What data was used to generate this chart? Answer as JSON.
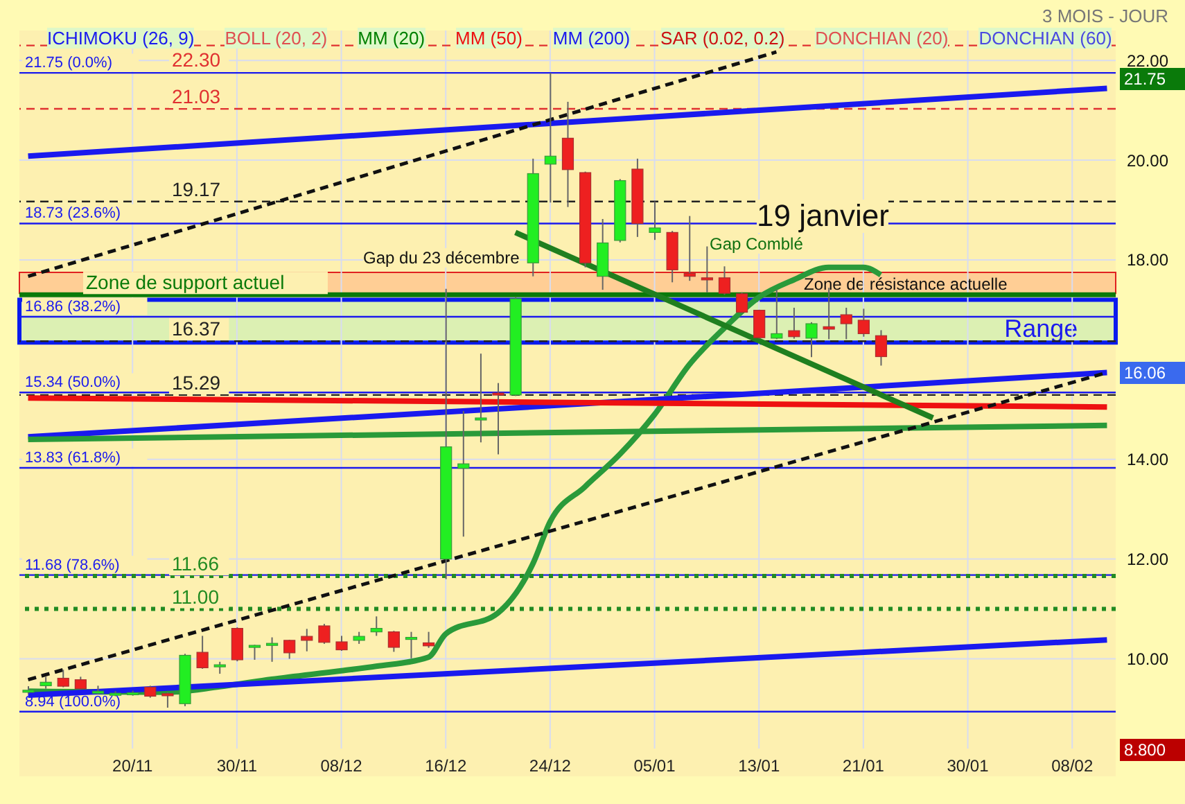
{
  "chart_data": {
    "type": "candlestick",
    "categories": [
      null,
      null,
      null,
      null,
      null,
      null,
      "20/11",
      null,
      null,
      null,
      null,
      null,
      "30/11",
      null,
      null,
      null,
      null,
      null,
      "08/12",
      null,
      null,
      null,
      null,
      null,
      "16/12",
      null,
      null,
      null,
      null,
      null,
      "24/12",
      null,
      null,
      null,
      null,
      null,
      "05/01",
      null,
      null,
      null,
      null,
      null,
      "13/01",
      null,
      null,
      null,
      null,
      null,
      "21/01",
      null,
      null,
      null,
      null,
      null,
      "30/01",
      null,
      null,
      null,
      null,
      null,
      "08/02",
      null,
      null
    ],
    "ohlc": [
      [
        9.37,
        9.45,
        9.3,
        9.37
      ],
      [
        9.46,
        9.64,
        9.4,
        9.53
      ],
      [
        9.61,
        9.78,
        9.43,
        9.45
      ],
      [
        9.58,
        9.64,
        9.38,
        9.4
      ],
      [
        9.35,
        9.46,
        9.29,
        9.35
      ],
      [
        9.27,
        9.35,
        9.25,
        9.31
      ],
      [
        9.28,
        9.36,
        9.26,
        9.32
      ],
      [
        9.43,
        9.46,
        9.22,
        9.25
      ],
      [
        9.3,
        9.33,
        9.02,
        9.26
      ],
      [
        9.1,
        10.1,
        9.05,
        10.07
      ],
      [
        10.13,
        10.46,
        9.8,
        9.82
      ],
      [
        9.85,
        9.94,
        9.7,
        9.88
      ],
      [
        10.61,
        10.63,
        9.95,
        9.98
      ],
      [
        10.24,
        10.28,
        9.98,
        10.27
      ],
      [
        10.31,
        10.43,
        9.94,
        10.31
      ],
      [
        10.37,
        10.38,
        10.0,
        10.12
      ],
      [
        10.45,
        10.6,
        10.15,
        10.37
      ],
      [
        10.66,
        10.7,
        10.3,
        10.33
      ],
      [
        10.34,
        10.46,
        10.16,
        10.18
      ],
      [
        10.37,
        10.54,
        10.3,
        10.45
      ],
      [
        10.54,
        10.85,
        10.46,
        10.61
      ],
      [
        10.54,
        10.56,
        10.14,
        10.23
      ],
      [
        10.43,
        10.54,
        10.01,
        10.43
      ],
      [
        10.32,
        10.54,
        10.22,
        10.26
      ],
      [
        12.0,
        17.42,
        11.6,
        14.25
      ],
      [
        13.82,
        14.97,
        12.45,
        13.91
      ],
      [
        14.8,
        16.12,
        14.34,
        14.83
      ],
      [
        15.33,
        15.53,
        14.1,
        15.29
      ],
      [
        15.29,
        17.25,
        15.27,
        17.22
      ],
      [
        17.94,
        20.03,
        17.67,
        19.73
      ],
      [
        19.92,
        21.75,
        19.15,
        20.08
      ],
      [
        20.44,
        21.17,
        19.06,
        19.81
      ],
      [
        19.75,
        19.77,
        17.85,
        17.94
      ],
      [
        17.67,
        18.82,
        17.4,
        18.34
      ],
      [
        18.39,
        19.62,
        18.35,
        19.59
      ],
      [
        19.82,
        20.03,
        18.46,
        18.73
      ],
      [
        18.55,
        19.17,
        18.4,
        18.64
      ],
      [
        18.55,
        18.58,
        17.55,
        17.8
      ],
      [
        17.73,
        18.88,
        17.58,
        17.67
      ],
      [
        17.64,
        18.27,
        17.35,
        17.6
      ],
      [
        17.64,
        17.87,
        17.3,
        17.33
      ],
      [
        17.32,
        17.35,
        16.93,
        16.95
      ],
      [
        16.99,
        17.0,
        16.42,
        16.44
      ],
      [
        16.43,
        17.4,
        16.41,
        16.52
      ],
      [
        16.58,
        17.04,
        16.42,
        16.46
      ],
      [
        16.43,
        16.75,
        16.05,
        16.72
      ],
      [
        16.66,
        17.44,
        16.41,
        16.61
      ],
      [
        16.9,
        17.04,
        16.41,
        16.72
      ],
      [
        16.79,
        17.02,
        16.46,
        16.52
      ],
      [
        16.48,
        16.59,
        15.88,
        16.06
      ],
      null,
      null,
      null,
      null,
      null,
      null,
      null,
      null,
      null,
      null,
      null,
      null,
      null
    ],
    "series": [
      {
        "type": "line",
        "color": "#2a9a3a",
        "values": [
          9.35,
          null,
          null,
          null,
          null,
          null,
          null,
          null,
          9.33,
          null,
          null,
          9.44,
          null,
          null,
          9.59,
          null,
          null,
          null,
          9.76,
          null,
          9.85,
          null,
          null,
          10.03,
          10.5,
          null,
          null,
          10.92,
          null,
          11.9,
          12.75,
          null,
          13.45,
          null,
          14.1,
          null,
          14.9,
          null,
          15.9,
          null,
          16.63,
          null,
          17.25,
          null,
          17.6,
          null,
          17.85,
          null,
          17.85,
          17.7,
          null,
          null,
          null,
          null,
          null,
          null,
          null,
          null,
          null,
          null,
          null,
          null,
          null
        ]
      },
      {
        "type": "line",
        "color": "#1a1aee",
        "values": [
          20.08,
          null,
          null,
          null,
          null,
          null,
          null,
          null,
          null,
          null,
          null,
          null,
          null,
          null,
          null,
          null,
          null,
          null,
          null,
          null,
          null,
          null,
          null,
          null,
          null,
          null,
          null,
          null,
          null,
          null,
          null,
          null,
          null,
          null,
          null,
          null,
          null,
          null,
          null,
          null,
          null,
          null,
          null,
          null,
          null,
          null,
          null,
          null,
          null,
          null,
          null,
          null,
          null,
          null,
          null,
          null,
          null,
          null,
          null,
          null,
          null,
          null,
          21.44
        ]
      },
      {
        "type": "line",
        "color": "#1a1aee",
        "values": [
          14.45,
          null,
          null,
          null,
          null,
          null,
          null,
          null,
          null,
          null,
          null,
          null,
          null,
          null,
          null,
          null,
          null,
          null,
          null,
          null,
          null,
          null,
          null,
          null,
          null,
          null,
          null,
          null,
          null,
          null,
          null,
          null,
          null,
          null,
          null,
          null,
          null,
          null,
          null,
          null,
          null,
          null,
          null,
          null,
          null,
          null,
          null,
          null,
          null,
          null,
          null,
          null,
          null,
          null,
          null,
          null,
          null,
          null,
          null,
          null,
          null,
          null,
          15.74
        ]
      },
      {
        "type": "line",
        "color": "#1a1aee",
        "values": [
          9.27,
          null,
          null,
          null,
          null,
          null,
          null,
          null,
          null,
          null,
          null,
          null,
          null,
          null,
          null,
          null,
          null,
          null,
          null,
          null,
          null,
          null,
          null,
          null,
          null,
          null,
          null,
          null,
          null,
          null,
          null,
          null,
          null,
          null,
          null,
          null,
          null,
          null,
          null,
          null,
          null,
          null,
          null,
          null,
          null,
          null,
          null,
          null,
          null,
          null,
          null,
          null,
          null,
          null,
          null,
          null,
          null,
          null,
          null,
          null,
          null,
          null,
          10.38
        ]
      },
      {
        "type": "line",
        "color": "#ee1111",
        "values": [
          15.23,
          null,
          null,
          null,
          null,
          null,
          null,
          null,
          null,
          null,
          null,
          null,
          null,
          null,
          null,
          null,
          null,
          null,
          null,
          null,
          null,
          null,
          null,
          null,
          null,
          null,
          null,
          null,
          null,
          null,
          null,
          null,
          null,
          null,
          null,
          null,
          null,
          null,
          null,
          null,
          null,
          null,
          null,
          null,
          null,
          null,
          null,
          null,
          null,
          null,
          null,
          null,
          null,
          null,
          null,
          null,
          null,
          null,
          null,
          null,
          null,
          null,
          15.05
        ]
      },
      {
        "type": "line",
        "color": "#2a9a3a",
        "values": [
          14.4,
          null,
          null,
          null,
          null,
          null,
          null,
          null,
          null,
          null,
          null,
          null,
          null,
          null,
          null,
          null,
          null,
          null,
          null,
          null,
          null,
          null,
          null,
          null,
          null,
          null,
          null,
          null,
          null,
          null,
          null,
          null,
          null,
          null,
          null,
          null,
          null,
          null,
          null,
          null,
          null,
          null,
          null,
          null,
          null,
          null,
          null,
          null,
          null,
          null,
          null,
          null,
          null,
          null,
          null,
          null,
          null,
          null,
          null,
          null,
          null,
          null,
          14.68
        ]
      },
      {
        "type": "line",
        "color": "#111111",
        "line_style": "dashed",
        "values": [
          17.67,
          null,
          null,
          null,
          null,
          null,
          null,
          null,
          null,
          null,
          null,
          null,
          null,
          null,
          null,
          null,
          null,
          null,
          null,
          null,
          null,
          null,
          null,
          null,
          null,
          null,
          null,
          null,
          null,
          null,
          null,
          null,
          null,
          null,
          null,
          null,
          null,
          null,
          null,
          null,
          null,
          null,
          null,
          22.17,
          null,
          null,
          null,
          null,
          null,
          null,
          null,
          null,
          null,
          null,
          null,
          null,
          null,
          null,
          null,
          null,
          null,
          null,
          null
        ]
      },
      {
        "type": "line",
        "color": "#111111",
        "line_style": "dashed",
        "values": [
          9.58,
          null,
          null,
          null,
          null,
          null,
          null,
          null,
          null,
          null,
          null,
          null,
          null,
          null,
          null,
          null,
          null,
          null,
          null,
          null,
          null,
          null,
          null,
          null,
          null,
          null,
          null,
          null,
          null,
          null,
          null,
          null,
          null,
          null,
          null,
          null,
          null,
          null,
          null,
          null,
          null,
          null,
          null,
          null,
          null,
          null,
          null,
          null,
          null,
          null,
          null,
          null,
          null,
          null,
          null,
          null,
          null,
          null,
          null,
          null,
          null,
          null,
          15.74
        ]
      },
      {
        "type": "line",
        "color": "#1f7f1f",
        "values": [
          null,
          null,
          null,
          null,
          null,
          null,
          null,
          null,
          null,
          null,
          null,
          null,
          null,
          null,
          null,
          null,
          null,
          null,
          null,
          null,
          null,
          null,
          null,
          null,
          null,
          null,
          null,
          null,
          18.55,
          null,
          null,
          null,
          null,
          null,
          null,
          null,
          null,
          null,
          null,
          null,
          null,
          null,
          null,
          null,
          null,
          null,
          null,
          null,
          null,
          null,
          null,
          null,
          14.83,
          null,
          null,
          null,
          null,
          null,
          null,
          null,
          null,
          null,
          null
        ]
      }
    ],
    "ylim": [
      8.2,
      22.6
    ],
    "yticks": [
      {
        "value": 10,
        "label": "10.00"
      },
      {
        "value": 12,
        "label": "12.00"
      },
      {
        "value": 14,
        "label": "14.00"
      },
      {
        "value": 18,
        "label": "18.00"
      },
      {
        "value": 20,
        "label": "20.00"
      },
      {
        "value": 22,
        "label": "22.00"
      }
    ],
    "grid": true,
    "ref_lines": [
      {
        "axis": "y",
        "value": 21.75,
        "label": "21.75  (0.0%)",
        "color": "#1a1aee",
        "line_style": "solid"
      },
      {
        "axis": "y",
        "value": 18.73,
        "label": "18.73  (23.6%)",
        "color": "#1a1aee",
        "line_style": "solid"
      },
      {
        "axis": "y",
        "value": 16.86,
        "label": "16.86  (38.2%)",
        "color": "#1a1aee",
        "line_style": "solid"
      },
      {
        "axis": "y",
        "value": 15.34,
        "label": "15.34  (50.0%)",
        "color": "#1a1aee",
        "line_style": "solid"
      },
      {
        "axis": "y",
        "value": 13.83,
        "label": "13.83  (61.8%)",
        "color": "#1a1aee",
        "line_style": "solid"
      },
      {
        "axis": "y",
        "value": 11.68,
        "label": "11.68  (78.6%)",
        "color": "#1a1aee",
        "line_style": "solid"
      },
      {
        "axis": "y",
        "value": 8.94,
        "label": "8.94  (100.0%)",
        "color": "#1a1aee",
        "line_style": "solid"
      },
      {
        "axis": "y",
        "value": 22.3,
        "label": "22.30",
        "color": "#e03030",
        "line_style": "dashed"
      },
      {
        "axis": "y",
        "value": 21.03,
        "label": "21.03",
        "color": "#e03030",
        "line_style": "dashed"
      },
      {
        "axis": "y",
        "value": 19.17,
        "label": "19.17",
        "color": "#222222",
        "line_style": "dashed"
      },
      {
        "axis": "y",
        "value": 16.37,
        "label": "16.37",
        "color": "#222222",
        "line_style": "dashed"
      },
      {
        "axis": "y",
        "value": 15.29,
        "label": "15.29",
        "color": "#222222",
        "line_style": "dashed"
      },
      {
        "axis": "y",
        "value": 11.66,
        "label": "11.66",
        "color": "#228b22",
        "line_style": "dotted"
      },
      {
        "axis": "y",
        "value": 11.0,
        "label": "11.00",
        "color": "#228b22",
        "line_style": "dotted"
      },
      {
        "axis": "y",
        "value": 17.3,
        "label": "Zone de support actuel",
        "color": "#0a7a0a",
        "line_style": "solid"
      }
    ],
    "bands": [
      {
        "axis": "y",
        "from": 17.33,
        "to": 17.75,
        "label": "Zone de résistance actuelle",
        "color": "#ffc890"
      },
      {
        "axis": "y",
        "from": 16.34,
        "to": 17.2,
        "label": "Range",
        "color": "#d6f0b4"
      }
    ],
    "annotations": [
      "3 MOIS - JOUR",
      "ICHIMOKU (26, 9)",
      "BOLL (20, 2)",
      "MM (20)",
      "MM (50)",
      "MM (200)",
      "SAR (0.02, 0.2)",
      "DONCHIAN (20)",
      "DONCHIAN (60)",
      "Gap du 23 décembre",
      "Gap Comblé",
      "19 janvier",
      "21.75",
      "16.06",
      "8.800"
    ]
  }
}
